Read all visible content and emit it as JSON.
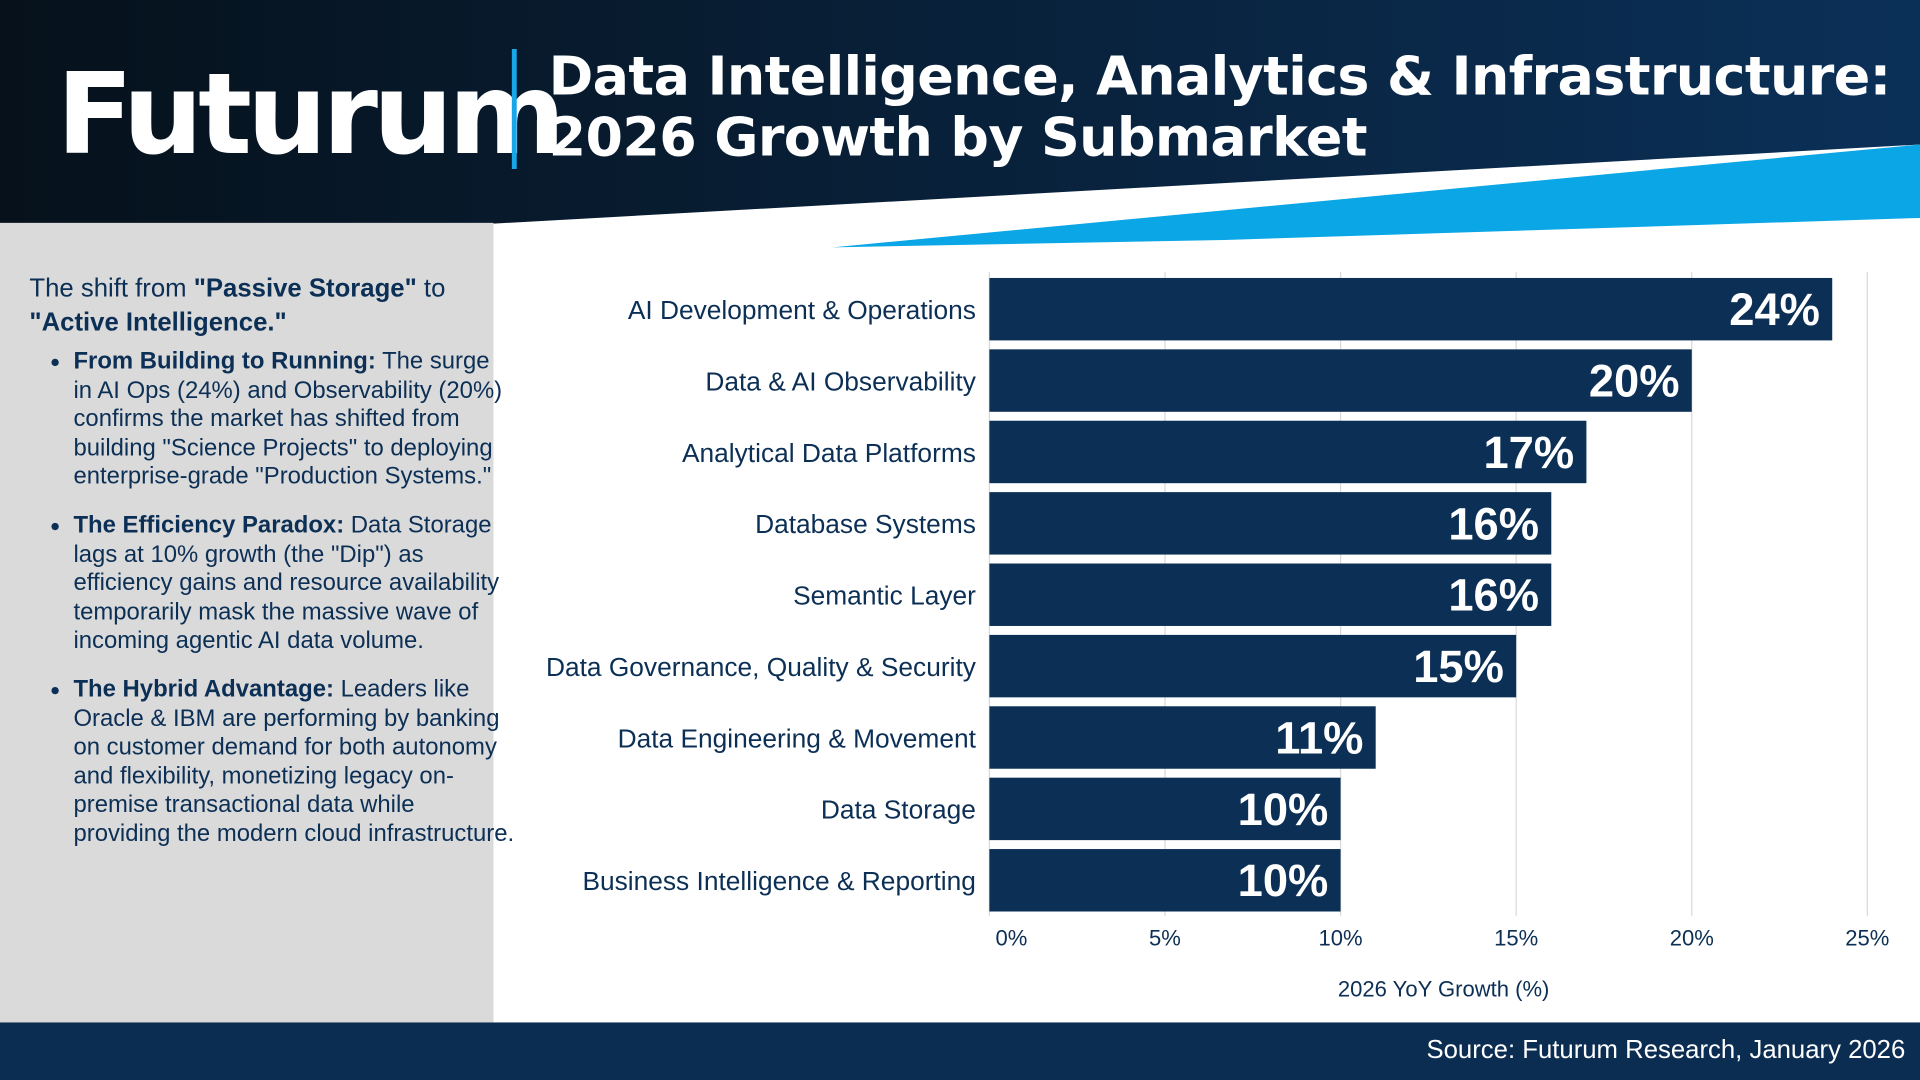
{
  "header": {
    "logo": "Futurum",
    "title_line1": "Data Intelligence, Analytics & Infrastructure:",
    "title_line2": "2026 Growth by Submarket"
  },
  "sidebar": {
    "lead_prefix": "The shift from ",
    "lead_bold1": "\"Passive Storage\"",
    "lead_mid": " to ",
    "lead_bold2": "\"Active Intelligence.\"",
    "bullets": [
      {
        "title": "From Building to Running:",
        "text": " The surge in AI Ops (24%) and Observability (20%) confirms the market has shifted from building \"Science Projects\" to deploying enterprise-grade \"Production Systems.\""
      },
      {
        "title": "The Efficiency Paradox:",
        "text": " Data Storage lags at 10% growth (the \"Dip\") as efficiency gains and resource availability temporarily mask the massive wave of incoming agentic AI data volume."
      },
      {
        "title": "The Hybrid Advantage:",
        "text": " Leaders like Oracle & IBM are performing by banking on customer demand for both autonomy and flexibility, monetizing legacy on-premise transactional data while providing the modern cloud infrastructure."
      }
    ]
  },
  "footer": {
    "source": "Source: Futurum Research, January 2026"
  },
  "colors": {
    "bar": "#0c2f55",
    "accent": "#1aa7e8",
    "text": "#0c2f55",
    "grid": "#d9d9d9"
  },
  "chart_data": {
    "type": "bar",
    "orientation": "horizontal",
    "categories": [
      "AI Development & Operations",
      "Data & AI Observability",
      "Analytical Data Platforms",
      "Database Systems",
      "Semantic Layer",
      "Data Governance, Quality & Security",
      "Data Engineering & Movement",
      "Data Storage",
      "Business Intelligence & Reporting"
    ],
    "values": [
      24,
      20,
      17,
      16,
      16,
      15,
      11,
      10,
      10
    ],
    "data_labels": [
      "24%",
      "20%",
      "17%",
      "16%",
      "16%",
      "15%",
      "11%",
      "10%",
      "10%"
    ],
    "xlabel": "2026 YoY Growth (%)",
    "xlim": [
      0,
      25
    ],
    "xticks": [
      0,
      5,
      10,
      15,
      20,
      25
    ],
    "xtick_labels": [
      "0%",
      "5%",
      "10%",
      "15%",
      "20%",
      "25%"
    ],
    "grid": "vertical"
  }
}
